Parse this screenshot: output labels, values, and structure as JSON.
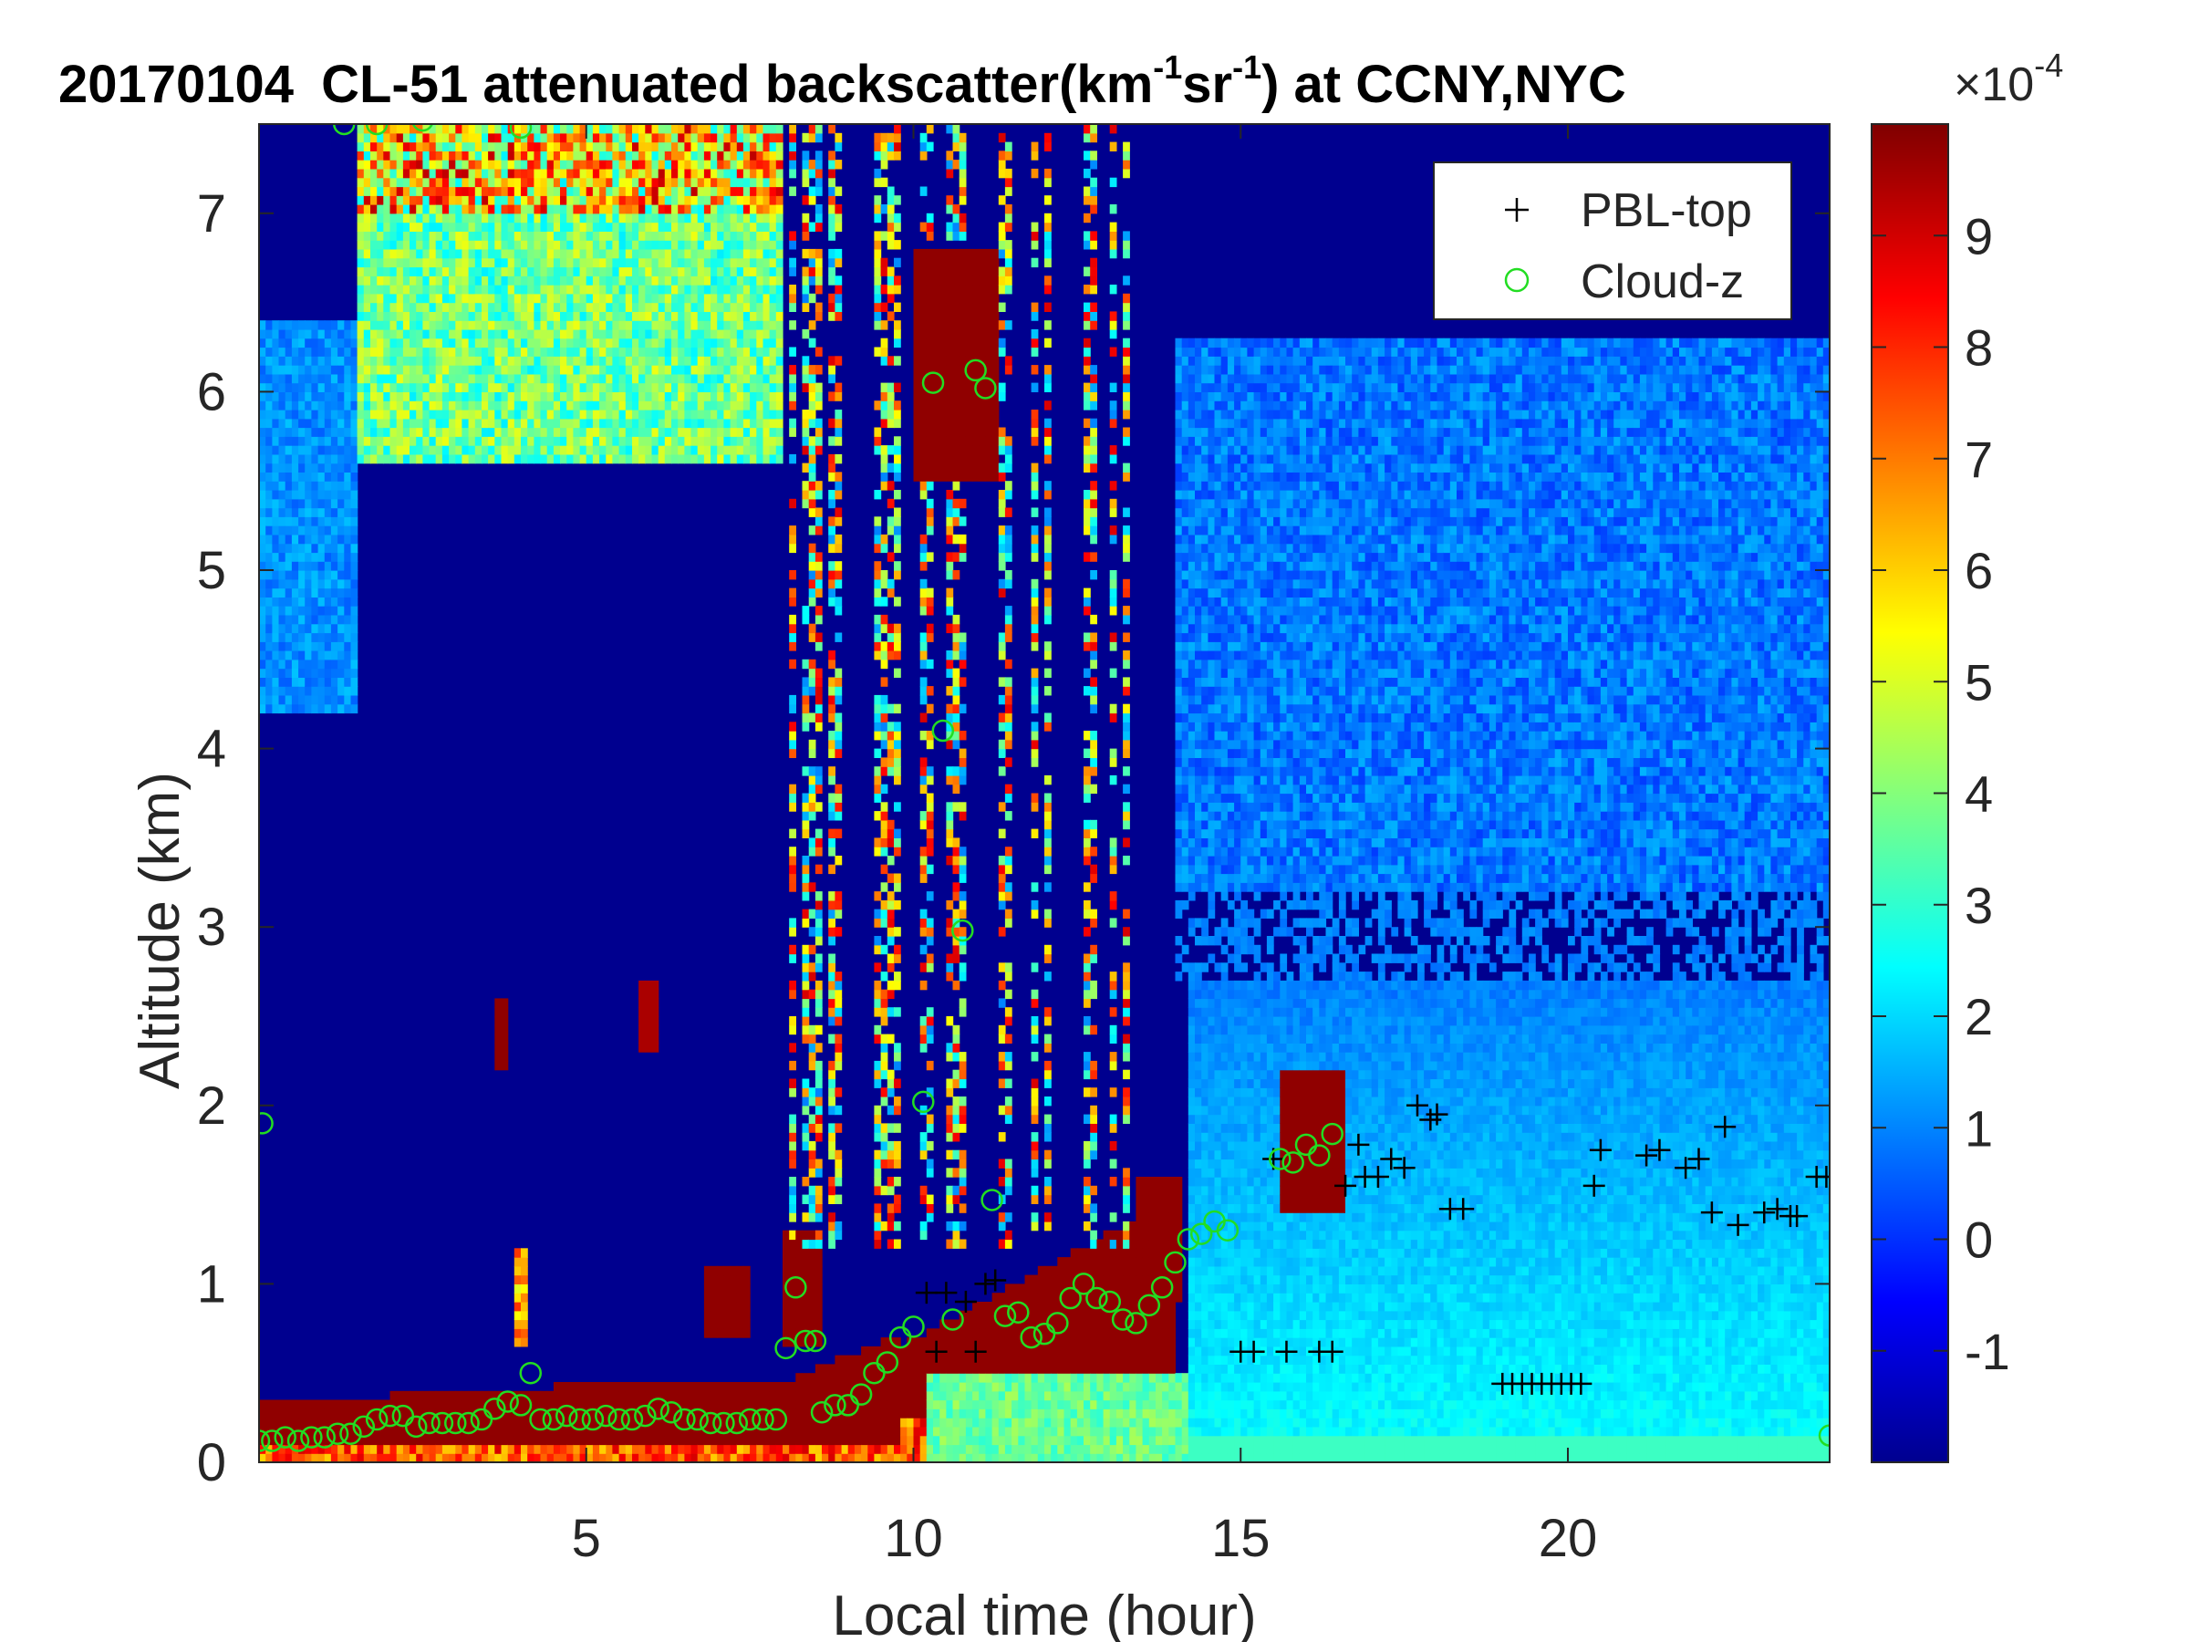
{
  "chart_data": {
    "type": "heatmap",
    "title": {
      "date": "20170104",
      "main": "CL-51 attenuated backscatter(km",
      "sup1": "-1",
      "mid": "sr",
      "sup2": "-1",
      "end": ") at CCNY,NYC"
    },
    "xlabel": "Local time (hour)",
    "ylabel": "Altitude (km)",
    "xlim": [
      0,
      24
    ],
    "ylim": [
      0,
      7.5
    ],
    "x_ticks": [
      5,
      10,
      15,
      20
    ],
    "x_tick_labels": [
      "5",
      "10",
      "15",
      "20"
    ],
    "y_ticks": [
      0,
      1,
      2,
      3,
      4,
      5,
      6,
      7
    ],
    "y_tick_labels": [
      "0",
      "1",
      "2",
      "3",
      "4",
      "5",
      "6",
      "7"
    ],
    "colorbar": {
      "range": [
        -2,
        10
      ],
      "ticks": [
        -1,
        0,
        1,
        2,
        3,
        4,
        5,
        6,
        7,
        8,
        9
      ],
      "tick_labels": [
        "-1",
        "0",
        "1",
        "2",
        "3",
        "4",
        "5",
        "6",
        "7",
        "8",
        "9"
      ],
      "exponent_base": "×10",
      "exponent": "-4",
      "colormap": "jet"
    },
    "legend": {
      "placement": "top-right",
      "entries": [
        {
          "label": "PBL-top",
          "marker": "+",
          "color": "#000000"
        },
        {
          "label": "Cloud-z",
          "marker": "o",
          "color": "#22dd22"
        }
      ]
    },
    "series": [
      {
        "name": "PBL-top",
        "x": [
          10.2,
          10.35,
          10.5,
          10.8,
          10.95,
          11.1,
          11.25,
          15.0,
          15.2,
          15.5,
          15.7,
          16.2,
          16.4,
          16.6,
          16.8,
          16.9,
          17.1,
          17.3,
          17.5,
          17.7,
          17.9,
          18.0,
          18.2,
          18.4,
          19.0,
          19.15,
          19.3,
          19.45,
          19.6,
          19.75,
          19.9,
          20.05,
          20.2,
          20.4,
          20.5,
          21.2,
          21.4,
          21.8,
          22.0,
          22.2,
          22.4,
          22.6,
          23.0,
          23.2,
          23.4,
          23.5,
          23.8,
          23.95
        ],
        "y": [
          0.95,
          0.62,
          0.95,
          0.9,
          0.62,
          1.0,
          1.02,
          0.62,
          0.62,
          1.7,
          0.62,
          0.62,
          0.62,
          1.55,
          1.78,
          1.6,
          1.6,
          1.7,
          1.65,
          2.0,
          1.92,
          1.95,
          1.42,
          1.42,
          0.44,
          0.44,
          0.44,
          0.44,
          0.44,
          0.44,
          0.44,
          0.44,
          0.44,
          1.55,
          1.75,
          1.72,
          1.75,
          1.65,
          1.7,
          1.4,
          1.88,
          1.33,
          1.4,
          1.42,
          1.38,
          1.38,
          1.6,
          1.6
        ]
      },
      {
        "name": "Cloud-z",
        "x": [
          0.05,
          0.2,
          0.4,
          0.6,
          0.8,
          1.0,
          1.2,
          1.4,
          1.6,
          1.8,
          2.0,
          2.2,
          2.4,
          2.6,
          2.8,
          3.0,
          3.2,
          3.4,
          3.6,
          3.8,
          4.0,
          4.15,
          4.3,
          4.5,
          4.7,
          4.9,
          5.1,
          5.3,
          5.5,
          5.7,
          5.9,
          6.1,
          6.3,
          6.5,
          6.7,
          6.9,
          7.1,
          7.3,
          7.5,
          7.7,
          7.9,
          8.05,
          8.2,
          8.35,
          8.5,
          8.6,
          8.8,
          9.0,
          9.2,
          9.4,
          9.6,
          9.8,
          10.0,
          10.15,
          10.3,
          10.45,
          10.6,
          10.75,
          11.2,
          11.4,
          11.6,
          11.8,
          12.0,
          12.2,
          12.4,
          12.6,
          12.8,
          13.0,
          13.2,
          13.4,
          13.6,
          13.8,
          14.0,
          14.2,
          14.4,
          14.6,
          14.8,
          15.6,
          15.8,
          16.0,
          16.2,
          16.4,
          1.3,
          1.8,
          2.5,
          4.0,
          0.0,
          24.0
        ],
        "y": [
          1.9,
          0.12,
          0.14,
          0.12,
          0.14,
          0.14,
          0.16,
          0.16,
          0.2,
          0.24,
          0.26,
          0.26,
          0.2,
          0.22,
          0.22,
          0.22,
          0.22,
          0.24,
          0.3,
          0.34,
          0.32,
          0.5,
          0.24,
          0.24,
          0.26,
          0.24,
          0.24,
          0.26,
          0.24,
          0.24,
          0.26,
          0.3,
          0.28,
          0.24,
          0.24,
          0.22,
          0.22,
          0.22,
          0.24,
          0.24,
          0.24,
          0.64,
          0.98,
          0.68,
          0.68,
          0.28,
          0.32,
          0.32,
          0.38,
          0.5,
          0.56,
          0.7,
          0.76,
          2.02,
          6.05,
          4.1,
          0.8,
          2.98,
          1.47,
          0.82,
          0.84,
          0.7,
          0.72,
          0.78,
          0.92,
          1.0,
          0.92,
          0.9,
          0.8,
          0.78,
          0.88,
          0.98,
          1.12,
          1.25,
          1.28,
          1.35,
          1.3,
          1.7,
          1.68,
          1.78,
          1.72,
          1.84,
          7.5,
          7.5,
          7.52,
          7.48,
          0.12,
          0.15
        ]
      },
      {
        "name": "Cloud-z-extra",
        "x": [
          10.95,
          11.1
        ],
        "y": [
          6.12,
          6.02
        ]
      }
    ]
  }
}
